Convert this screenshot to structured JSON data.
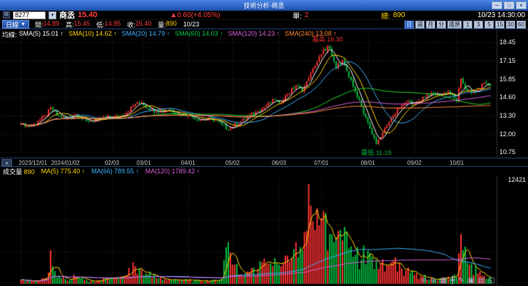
{
  "window": {
    "title": "技術分析-商丞",
    "controls": {
      "minimize": "─",
      "maximize": "□",
      "close": "×"
    }
  },
  "quote_bar": {
    "symbol": "8277",
    "name": "商丞",
    "price": "15.40",
    "change": "▲0.60(+4.05%)",
    "single_label": "單:",
    "single_value": "2",
    "total_label": "總:",
    "total_value": "890",
    "datetime": "10/23 14:30:00"
  },
  "toolbar": {
    "period": "日線",
    "caret": "▼",
    "open_label": "開:",
    "open": "14.89",
    "high_label": "高:",
    "high": "15.45",
    "low_label": "低:",
    "low": "14.85",
    "close_label": "收:",
    "close": "15.40",
    "vol_label": "量:",
    "vol": "890",
    "date": "10/23",
    "period_buttons": [
      {
        "label": "日",
        "active": true
      },
      {
        "label": "週"
      },
      {
        "label": "月"
      },
      {
        "label": "分"
      },
      {
        "label": "還原"
      },
      {
        "label": "1"
      },
      {
        "label": "3"
      },
      {
        "label": "5"
      },
      {
        "label": "15"
      },
      {
        "label": "30"
      },
      {
        "label": "60"
      }
    ]
  },
  "sma_header": {
    "label": "均線:",
    "items": [
      {
        "text": "SMA(5) 15.01 ↑"
      },
      {
        "text": "SMA(10) 14.62 ↑"
      },
      {
        "text": "SMA(20) 14.79 ↑"
      },
      {
        "text": "SMA(60) 14.03 ↑"
      },
      {
        "text": "SMA(120) 14.23 ↑"
      },
      {
        "text": "SMA(240) 13.08 ↑"
      }
    ]
  },
  "volume_header": {
    "label": "成交量",
    "value": "890",
    "items": [
      {
        "text": "MA(5) 775.40 ↑"
      },
      {
        "text": "MA(66) 789.55 ↑"
      },
      {
        "text": "MA(120) 1789.42 ↑"
      }
    ]
  },
  "expand_button": "»",
  "bottom_icons": [
    {
      "name": "zoom-out-icon",
      "glyph": "⊖"
    },
    {
      "name": "zoom-in-icon",
      "glyph": "⊕"
    },
    {
      "name": "chart-grid-icon",
      "glyph": "▦"
    },
    {
      "name": "crosshair-icon",
      "glyph": "╋"
    },
    {
      "name": "draw-icon",
      "glyph": "✎"
    },
    {
      "name": "save-icon",
      "glyph": "▣"
    },
    {
      "name": "print-icon",
      "glyph": "▤"
    },
    {
      "name": "expand-icon",
      "glyph": "◱"
    }
  ],
  "chart_data": [
    {
      "type": "candlestick",
      "name": "商丞 日線",
      "n_bars": 223,
      "up_color": "#f23030",
      "down_color": "#00b43c",
      "ylim": [
        10.3,
        19.35
      ],
      "y_ticks": [
        18.45,
        17.15,
        15.85,
        14.6,
        13.3,
        12.0,
        10.75
      ],
      "x_ticks": [
        {
          "label": "2023/12/01",
          "index": 0
        },
        {
          "label": "2024/01/02",
          "index": 21
        },
        {
          "label": "02/03",
          "index": 43
        },
        {
          "label": "03/01",
          "index": 58
        },
        {
          "label": "04/01",
          "index": 79
        },
        {
          "label": "05/02",
          "index": 100
        },
        {
          "label": "06/03",
          "index": 122
        },
        {
          "label": "07/01",
          "index": 142
        },
        {
          "label": "08/01",
          "index": 164
        },
        {
          "label": "09/02",
          "index": 186
        },
        {
          "label": "10/01",
          "index": 206
        }
      ],
      "annotations": [
        {
          "text": "最高 18.30",
          "index": 145,
          "price": 18.3,
          "pos": "above",
          "color": "#f23030"
        },
        {
          "text": "最低 11.15",
          "index": 168,
          "price": 11.15,
          "pos": "below",
          "color": "#00b43c"
        }
      ],
      "sma": [
        {
          "name": "SMA(5)",
          "period": 5,
          "value": 15.01,
          "color": "#ffffff"
        },
        {
          "name": "SMA(10)",
          "period": 10,
          "value": 14.62,
          "color": "#ffd400"
        },
        {
          "name": "SMA(20)",
          "period": 20,
          "value": 14.79,
          "color": "#3db1ff"
        },
        {
          "name": "SMA(60)",
          "period": 60,
          "value": 14.03,
          "color": "#2bd42b"
        },
        {
          "name": "SMA(120)",
          "period": 120,
          "value": 14.23,
          "color": "#d95fd9"
        },
        {
          "name": "SMA(240)",
          "period": 240,
          "value": 13.08,
          "color": "#ff8833"
        }
      ],
      "close_anchors": [
        [
          0,
          12.7
        ],
        [
          4,
          12.5
        ],
        [
          8,
          12.9
        ],
        [
          12,
          13.3
        ],
        [
          14,
          13.9
        ],
        [
          17,
          13.3
        ],
        [
          21,
          13.1
        ],
        [
          26,
          13.4
        ],
        [
          31,
          12.9
        ],
        [
          36,
          13.0
        ],
        [
          40,
          13.2
        ],
        [
          43,
          13.1
        ],
        [
          47,
          13.3
        ],
        [
          50,
          13.5
        ],
        [
          54,
          14.1
        ],
        [
          57,
          14.2
        ],
        [
          60,
          13.8
        ],
        [
          64,
          13.6
        ],
        [
          70,
          13.7
        ],
        [
          75,
          13.4
        ],
        [
          79,
          13.3
        ],
        [
          85,
          13.0
        ],
        [
          90,
          13.1
        ],
        [
          95,
          12.7
        ],
        [
          98,
          12.3
        ],
        [
          100,
          12.5
        ],
        [
          104,
          12.9
        ],
        [
          108,
          13.3
        ],
        [
          112,
          13.6
        ],
        [
          116,
          14.0
        ],
        [
          120,
          14.4
        ],
        [
          122,
          14.2
        ],
        [
          126,
          14.8
        ],
        [
          130,
          15.4
        ],
        [
          133,
          15.0
        ],
        [
          136,
          15.9
        ],
        [
          139,
          16.8
        ],
        [
          142,
          17.6
        ],
        [
          145,
          18.2
        ],
        [
          147,
          17.5
        ],
        [
          149,
          16.6
        ],
        [
          152,
          17.2
        ],
        [
          155,
          16.0
        ],
        [
          158,
          15.0
        ],
        [
          161,
          13.9
        ],
        [
          164,
          12.8
        ],
        [
          166,
          12.0
        ],
        [
          168,
          11.3
        ],
        [
          170,
          11.8
        ],
        [
          173,
          12.6
        ],
        [
          176,
          13.3
        ],
        [
          180,
          14.0
        ],
        [
          184,
          14.3
        ],
        [
          186,
          14.1
        ],
        [
          190,
          14.6
        ],
        [
          194,
          14.9
        ],
        [
          198,
          14.7
        ],
        [
          202,
          15.0
        ],
        [
          206,
          14.3
        ],
        [
          208,
          15.9
        ],
        [
          210,
          15.2
        ],
        [
          213,
          14.9
        ],
        [
          216,
          15.1
        ],
        [
          219,
          15.6
        ],
        [
          222,
          15.4
        ]
      ]
    },
    {
      "type": "bar",
      "name": "成交量",
      "y_max": 12421,
      "today_volume": 890,
      "ma": [
        {
          "name": "MA(5)",
          "period": 5,
          "value": 775.4,
          "color": "#ffd400"
        },
        {
          "name": "MA(66)",
          "period": 66,
          "value": 789.55,
          "color": "#3db1ff"
        },
        {
          "name": "MA(120)",
          "period": 120,
          "value": 1789.42,
          "color": "#d95fd9"
        }
      ],
      "volume_anchors": [
        [
          0,
          500
        ],
        [
          5,
          350
        ],
        [
          10,
          700
        ],
        [
          13,
          1400
        ],
        [
          14,
          4200
        ],
        [
          15,
          2200
        ],
        [
          17,
          800
        ],
        [
          21,
          600
        ],
        [
          26,
          900
        ],
        [
          31,
          450
        ],
        [
          36,
          400
        ],
        [
          40,
          700
        ],
        [
          43,
          650
        ],
        [
          47,
          900
        ],
        [
          50,
          1100
        ],
        [
          54,
          2200
        ],
        [
          57,
          1800
        ],
        [
          60,
          1200
        ],
        [
          64,
          700
        ],
        [
          70,
          550
        ],
        [
          75,
          400
        ],
        [
          79,
          450
        ],
        [
          85,
          350
        ],
        [
          90,
          420
        ],
        [
          95,
          600
        ],
        [
          98,
          5200
        ],
        [
          100,
          2400
        ],
        [
          104,
          1200
        ],
        [
          108,
          1500
        ],
        [
          112,
          1800
        ],
        [
          116,
          2500
        ],
        [
          120,
          3200
        ],
        [
          122,
          2400
        ],
        [
          126,
          3500
        ],
        [
          130,
          5200
        ],
        [
          133,
          4200
        ],
        [
          136,
          12421
        ],
        [
          138,
          7800
        ],
        [
          140,
          9400
        ],
        [
          142,
          8200
        ],
        [
          144,
          8800
        ],
        [
          146,
          6200
        ],
        [
          148,
          5200
        ],
        [
          150,
          6600
        ],
        [
          152,
          5400
        ],
        [
          155,
          4400
        ],
        [
          158,
          3600
        ],
        [
          161,
          3000
        ],
        [
          164,
          4100
        ],
        [
          166,
          3400
        ],
        [
          168,
          3000
        ],
        [
          170,
          2600
        ],
        [
          173,
          2400
        ],
        [
          176,
          2900
        ],
        [
          180,
          1900
        ],
        [
          184,
          1400
        ],
        [
          186,
          1100
        ],
        [
          190,
          900
        ],
        [
          194,
          800
        ],
        [
          198,
          700
        ],
        [
          202,
          900
        ],
        [
          206,
          800
        ],
        [
          208,
          6200
        ],
        [
          209,
          4200
        ],
        [
          212,
          2400
        ],
        [
          216,
          1300
        ],
        [
          219,
          1000
        ],
        [
          222,
          890
        ]
      ]
    }
  ]
}
